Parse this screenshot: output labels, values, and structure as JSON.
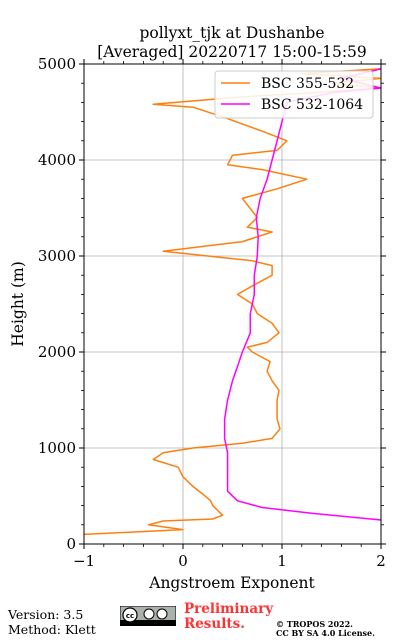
{
  "chart_data": {
    "type": "line",
    "title": [
      "pollyxt_tjk at Dushanbe",
      "[Averaged] 20220717 15:00-15:59"
    ],
    "xlabel": "Angstroem Exponent",
    "ylabel": "Height (m)",
    "xlim": [
      -1,
      2
    ],
    "ylim": [
      0,
      5000
    ],
    "xticks": [
      "−1",
      "0",
      "1",
      "2"
    ],
    "yticks": [
      "0",
      "1000",
      "2000",
      "3000",
      "4000",
      "5000"
    ],
    "grid": true,
    "legend_position": "top-right",
    "series": [
      {
        "name": "BSC 355-532",
        "color": "#ff7f0e",
        "points": [
          [
            -1.0,
            100
          ],
          [
            0.0,
            150
          ],
          [
            -0.35,
            200
          ],
          [
            -0.2,
            240
          ],
          [
            0.3,
            260
          ],
          [
            0.4,
            300
          ],
          [
            0.3,
            400
          ],
          [
            0.28,
            450
          ],
          [
            0.2,
            520
          ],
          [
            0.1,
            600
          ],
          [
            0.05,
            650
          ],
          [
            0.0,
            700
          ],
          [
            -0.05,
            800
          ],
          [
            -0.3,
            880
          ],
          [
            -0.2,
            950
          ],
          [
            0.1,
            1000
          ],
          [
            0.6,
            1050
          ],
          [
            0.9,
            1100
          ],
          [
            0.98,
            1200
          ],
          [
            0.95,
            1300
          ],
          [
            0.95,
            1400
          ],
          [
            0.95,
            1500
          ],
          [
            0.97,
            1600
          ],
          [
            0.9,
            1700
          ],
          [
            0.85,
            1800
          ],
          [
            0.88,
            1900
          ],
          [
            0.7,
            2000
          ],
          [
            0.65,
            2050
          ],
          [
            0.85,
            2100
          ],
          [
            0.97,
            2200
          ],
          [
            0.9,
            2300
          ],
          [
            0.75,
            2400
          ],
          [
            0.7,
            2500
          ],
          [
            0.55,
            2600
          ],
          [
            0.72,
            2700
          ],
          [
            0.9,
            2800
          ],
          [
            0.9,
            2900
          ],
          [
            0.7,
            2950
          ],
          [
            -0.2,
            3050
          ],
          [
            0.6,
            3150
          ],
          [
            0.9,
            3250
          ],
          [
            0.65,
            3300
          ],
          [
            0.75,
            3400
          ],
          [
            0.6,
            3600
          ],
          [
            0.95,
            3700
          ],
          [
            1.25,
            3800
          ],
          [
            0.8,
            3900
          ],
          [
            0.45,
            3950
          ],
          [
            0.5,
            4050
          ],
          [
            0.95,
            4100
          ],
          [
            1.05,
            4200
          ],
          [
            0.8,
            4300
          ],
          [
            0.4,
            4450
          ],
          [
            0.1,
            4550
          ],
          [
            -0.3,
            4580
          ],
          [
            0.5,
            4650
          ],
          [
            1.3,
            4700
          ],
          [
            2.0,
            4750
          ],
          [
            1.5,
            4800
          ],
          [
            2.0,
            4850
          ],
          [
            1.2,
            4900
          ],
          [
            2.0,
            4950
          ]
        ]
      },
      {
        "name": "BSC 532-1064",
        "color": "#ff00ff",
        "points": [
          [
            2.0,
            250
          ],
          [
            1.3,
            320
          ],
          [
            0.8,
            380
          ],
          [
            0.55,
            450
          ],
          [
            0.45,
            550
          ],
          [
            0.45,
            650
          ],
          [
            0.45,
            800
          ],
          [
            0.45,
            950
          ],
          [
            0.42,
            1100
          ],
          [
            0.42,
            1300
          ],
          [
            0.45,
            1500
          ],
          [
            0.5,
            1700
          ],
          [
            0.55,
            1850
          ],
          [
            0.6,
            2000
          ],
          [
            0.68,
            2200
          ],
          [
            0.68,
            2400
          ],
          [
            0.72,
            2600
          ],
          [
            0.72,
            2800
          ],
          [
            0.75,
            3000
          ],
          [
            0.76,
            3200
          ],
          [
            0.74,
            3400
          ],
          [
            0.78,
            3600
          ],
          [
            0.85,
            3800
          ],
          [
            0.9,
            4000
          ],
          [
            0.95,
            4200
          ],
          [
            1.0,
            4400
          ],
          [
            1.05,
            4600
          ],
          [
            1.5,
            4700
          ],
          [
            2.0,
            4750
          ],
          [
            1.6,
            4850
          ],
          [
            2.0,
            4950
          ]
        ]
      }
    ]
  },
  "footer": {
    "version": "Version: 3.5",
    "method": "Method: Klett",
    "preliminary_line1": "Preliminary",
    "preliminary_line2": "Results.",
    "copyright_line1": "© TROPOS 2022.",
    "copyright_line2": "CC BY SA 4.0 License.",
    "cc_badge_text": "cc by sa"
  }
}
